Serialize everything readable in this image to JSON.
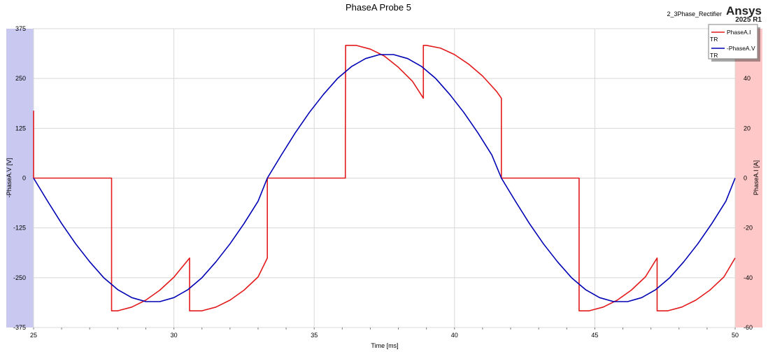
{
  "header": {
    "title": "PhaseA Probe 5",
    "design_name": "2_3Phase_Rectifier",
    "brand": "Ansys",
    "version": "2025 R1"
  },
  "chart_data": {
    "type": "line",
    "title": "PhaseA Probe 5",
    "xlabel": "Time [ms]",
    "ylabel_left": "-PhaseA.V [V]",
    "ylabel_right": "PhaseA.I [A]",
    "xlim": [
      25,
      50
    ],
    "ylim_left": [
      -375,
      375
    ],
    "ylim_right": [
      -60,
      60
    ],
    "x_ticks": [
      "25",
      "30",
      "35",
      "40",
      "45",
      "50"
    ],
    "y_left_ticks": [
      "375",
      "250",
      "125",
      "0",
      "-125",
      "-250",
      "-375"
    ],
    "y_right_ticks": [
      "40",
      "20",
      "0",
      "-20",
      "-40",
      "-60"
    ],
    "grid": true,
    "legend_position": "top-right",
    "colors": {
      "current": "#e31a1c",
      "voltage": "#0000b4",
      "left_axis_band": "#c8c8f0",
      "right_axis_band": "#ffc8c8"
    },
    "series": [
      {
        "name": "PhaseA.I",
        "legend_sub": "TR",
        "axis": "right",
        "color": "#e31a1c",
        "points": [
          [
            25.0,
            27.1
          ],
          [
            25.0,
            0
          ],
          [
            27.78,
            0
          ],
          [
            27.78,
            -53.3
          ],
          [
            28.0,
            -53.3
          ],
          [
            28.5,
            -51.8
          ],
          [
            29.0,
            -49.0
          ],
          [
            29.5,
            -45.0
          ],
          [
            30.0,
            -39.8
          ],
          [
            30.56,
            -32.1
          ],
          [
            30.56,
            -53.3
          ],
          [
            31.0,
            -53.3
          ],
          [
            31.5,
            -51.8
          ],
          [
            32.0,
            -49.0
          ],
          [
            32.5,
            -45.0
          ],
          [
            33.0,
            -39.7
          ],
          [
            33.33,
            -32.1
          ],
          [
            33.33,
            0
          ],
          [
            36.11,
            0
          ],
          [
            36.11,
            15.0
          ],
          [
            36.12,
            53.3
          ],
          [
            36.5,
            53.3
          ],
          [
            37.0,
            51.8
          ],
          [
            37.5,
            49.0
          ],
          [
            38.0,
            44.5
          ],
          [
            38.5,
            38.9
          ],
          [
            38.89,
            32.1
          ],
          [
            38.89,
            53.3
          ],
          [
            39.0,
            53.3
          ],
          [
            39.5,
            52.2
          ],
          [
            40.0,
            49.6
          ],
          [
            40.5,
            45.8
          ],
          [
            41.0,
            41.0
          ],
          [
            41.5,
            34.8
          ],
          [
            41.67,
            32.1
          ],
          [
            41.67,
            0
          ],
          [
            44.44,
            0
          ],
          [
            44.44,
            -53.3
          ],
          [
            44.8,
            -53.3
          ],
          [
            45.3,
            -51.8
          ],
          [
            45.8,
            -49.0
          ],
          [
            46.3,
            -45.0
          ],
          [
            46.8,
            -39.7
          ],
          [
            47.22,
            -32.1
          ],
          [
            47.22,
            -53.3
          ],
          [
            47.6,
            -53.3
          ],
          [
            48.1,
            -51.8
          ],
          [
            48.6,
            -49.0
          ],
          [
            49.1,
            -45.0
          ],
          [
            49.6,
            -39.7
          ],
          [
            50.0,
            -32.1
          ]
        ]
      },
      {
        "name": "-PhaseA.V",
        "legend_sub": "TR",
        "axis": "left",
        "color": "#0000b4",
        "amplitude": 311,
        "period_ms": 16.667,
        "x_start": 25,
        "points": [
          [
            25.0,
            0
          ],
          [
            25.5,
            -58
          ],
          [
            26.0,
            -114
          ],
          [
            26.5,
            -165
          ],
          [
            27.0,
            -210
          ],
          [
            27.5,
            -250
          ],
          [
            28.0,
            -280
          ],
          [
            28.5,
            -300
          ],
          [
            29.0,
            -310
          ],
          [
            29.5,
            -310
          ],
          [
            30.0,
            -300
          ],
          [
            30.5,
            -280
          ],
          [
            31.0,
            -250
          ],
          [
            31.5,
            -210
          ],
          [
            32.0,
            -165
          ],
          [
            32.5,
            -114
          ],
          [
            33.0,
            -58
          ],
          [
            33.33,
            0
          ],
          [
            33.83,
            58
          ],
          [
            34.33,
            114
          ],
          [
            34.83,
            165
          ],
          [
            35.33,
            210
          ],
          [
            35.83,
            250
          ],
          [
            36.33,
            280
          ],
          [
            36.83,
            300
          ],
          [
            37.33,
            310
          ],
          [
            37.83,
            310
          ],
          [
            38.33,
            300
          ],
          [
            38.83,
            280
          ],
          [
            39.33,
            250
          ],
          [
            39.83,
            210
          ],
          [
            40.33,
            165
          ],
          [
            40.83,
            114
          ],
          [
            41.33,
            58
          ],
          [
            41.67,
            0
          ],
          [
            42.17,
            -58
          ],
          [
            42.67,
            -114
          ],
          [
            43.17,
            -165
          ],
          [
            43.67,
            -210
          ],
          [
            44.17,
            -250
          ],
          [
            44.67,
            -280
          ],
          [
            45.17,
            -300
          ],
          [
            45.67,
            -310
          ],
          [
            46.17,
            -310
          ],
          [
            46.67,
            -300
          ],
          [
            47.17,
            -280
          ],
          [
            47.67,
            -250
          ],
          [
            48.17,
            -210
          ],
          [
            48.67,
            -165
          ],
          [
            49.17,
            -114
          ],
          [
            49.67,
            -58
          ],
          [
            50.0,
            0
          ]
        ]
      }
    ]
  }
}
